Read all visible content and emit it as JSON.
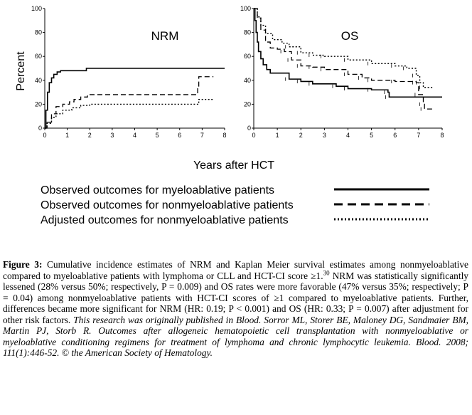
{
  "chart_data": [
    {
      "type": "line",
      "title": "NRM",
      "ylabel": "Percent",
      "xlim": [
        0,
        8
      ],
      "ylim": [
        0,
        100
      ],
      "xticks": [
        "0",
        "1",
        "2",
        "3",
        "4",
        "5",
        "6",
        "7",
        "8"
      ],
      "yticks": [
        "0",
        "20",
        "40",
        "60",
        "80",
        "100"
      ],
      "series": [
        {
          "name": "Observed outcomes for myeloablative patients",
          "style": "solid",
          "points": [
            [
              0,
              0
            ],
            [
              0.05,
              15
            ],
            [
              0.12,
              30
            ],
            [
              0.2,
              38
            ],
            [
              0.3,
              42
            ],
            [
              0.4,
              45
            ],
            [
              0.55,
              47
            ],
            [
              0.7,
              48
            ],
            [
              1.8,
              48
            ],
            [
              1.85,
              50
            ],
            [
              8,
              50
            ]
          ]
        },
        {
          "name": "Observed outcomes for nonmyeloablative patients",
          "style": "dashed",
          "points": [
            [
              0,
              0
            ],
            [
              0.1,
              5
            ],
            [
              0.3,
              12
            ],
            [
              0.5,
              18
            ],
            [
              0.8,
              20
            ],
            [
              1.1,
              22
            ],
            [
              1.3,
              24
            ],
            [
              1.6,
              26
            ],
            [
              1.9,
              28
            ],
            [
              6.8,
              28
            ],
            [
              6.8,
              34
            ],
            [
              6.85,
              43
            ],
            [
              7.5,
              43
            ]
          ]
        },
        {
          "name": "Adjusted outcomes for nonmyeloablative patients",
          "style": "dotted",
          "points": [
            [
              0,
              0
            ],
            [
              0.1,
              4
            ],
            [
              0.3,
              9
            ],
            [
              0.5,
              12
            ],
            [
              0.8,
              15
            ],
            [
              1.2,
              17
            ],
            [
              1.6,
              19
            ],
            [
              2,
              20
            ],
            [
              6.8,
              20
            ],
            [
              6.85,
              24
            ],
            [
              7.5,
              24
            ]
          ]
        }
      ]
    },
    {
      "type": "line",
      "title": "OS",
      "xlim": [
        0,
        8
      ],
      "ylim": [
        0,
        100
      ],
      "xticks": [
        "0",
        "1",
        "2",
        "3",
        "4",
        "5",
        "6",
        "7",
        "8"
      ],
      "yticks": [
        "0",
        "20",
        "40",
        "60",
        "80",
        "100"
      ],
      "series": [
        {
          "name": "Observed outcomes for myeloablative patients",
          "style": "solid",
          "points": [
            [
              0,
              100
            ],
            [
              0.05,
              90
            ],
            [
              0.1,
              80
            ],
            [
              0.15,
              72
            ],
            [
              0.2,
              64
            ],
            [
              0.3,
              58
            ],
            [
              0.4,
              53
            ],
            [
              0.55,
              49
            ],
            [
              0.7,
              46
            ],
            [
              1.1,
              46
            ],
            [
              1.5,
              41
            ],
            [
              2,
              39
            ],
            [
              2.5,
              37
            ],
            [
              3.5,
              35
            ],
            [
              4,
              33
            ],
            [
              5,
              32
            ],
            [
              5.7,
              30
            ],
            [
              5.75,
              26
            ],
            [
              8,
              26
            ]
          ]
        },
        {
          "name": "Observed outcomes for nonmyeloablative patients",
          "style": "dashed",
          "points": [
            [
              0,
              100
            ],
            [
              0.15,
              92
            ],
            [
              0.3,
              82
            ],
            [
              0.5,
              72
            ],
            [
              0.7,
              67
            ],
            [
              1.0,
              66
            ],
            [
              1.3,
              64
            ],
            [
              1.6,
              57
            ],
            [
              2.0,
              52
            ],
            [
              2.5,
              51
            ],
            [
              3.0,
              49
            ],
            [
              4.0,
              45
            ],
            [
              4.6,
              42
            ],
            [
              5.0,
              40
            ],
            [
              6.0,
              39
            ],
            [
              6.9,
              38
            ],
            [
              7.0,
              28
            ],
            [
              7.2,
              20
            ],
            [
              7.25,
              16
            ],
            [
              7.6,
              16
            ]
          ]
        },
        {
          "name": "Adjusted outcomes for nonmyeloablative patients",
          "style": "dotted",
          "points": [
            [
              0,
              100
            ],
            [
              0.15,
              93
            ],
            [
              0.3,
              86
            ],
            [
              0.5,
              79
            ],
            [
              0.8,
              74
            ],
            [
              1.2,
              71
            ],
            [
              1.5,
              68
            ],
            [
              2.0,
              63
            ],
            [
              2.5,
              61
            ],
            [
              3.0,
              60
            ],
            [
              4.0,
              57
            ],
            [
              5.0,
              54
            ],
            [
              6.0,
              52
            ],
            [
              6.5,
              50
            ],
            [
              6.9,
              44
            ],
            [
              7.05,
              38
            ],
            [
              7.2,
              34
            ],
            [
              7.6,
              34
            ]
          ]
        }
      ]
    }
  ],
  "figure": {
    "shared_xlabel": "Years after HCT",
    "legend": [
      {
        "label": "Observed outcomes for myeloablative patients",
        "style": "solid"
      },
      {
        "label": "Observed outcomes for nonmyeloablative patients",
        "style": "dashed"
      },
      {
        "label": "Adjusted outcomes for nonmyeloablative patients",
        "style": "dotted"
      }
    ]
  },
  "caption": {
    "label": "Figure 3:",
    "text_a": " Cumulative incidence estimates of NRM and Kaplan Meier survival estimates among nonmyeloablative compared to myeloablative patients with lymphoma or CLL and HCT-CI score ≥1.",
    "superscript": "30",
    "text_b": " NRM was statistically significantly lessened (28% versus 50%; respectively, P = 0.009) and OS rates were more favorable (47% versus 35%; respectively; P = 0.04) among nonmyeloablative patients with HCT-CI scores of ≥1 compared to myeloablative patients. Further, differences became more significant for NRM (HR: 0.19; P < 0.001) and OS (HR: 0.33; P = 0.007) after adjustment for other risk factors. ",
    "citation": "This research was originally published in Blood. Sorror ML, Storer BE, Maloney DG, Sandmaier BM, Martin PJ, Storb R. Outcomes after allogeneic hematopoietic cell transplantation with nonmyeloablative or myeloablative conditioning regimens for treatment of lymphoma and chronic lymphocytic leukemia. Blood. 2008; 111(1):446-52.  © the American Society of Hematology."
  }
}
